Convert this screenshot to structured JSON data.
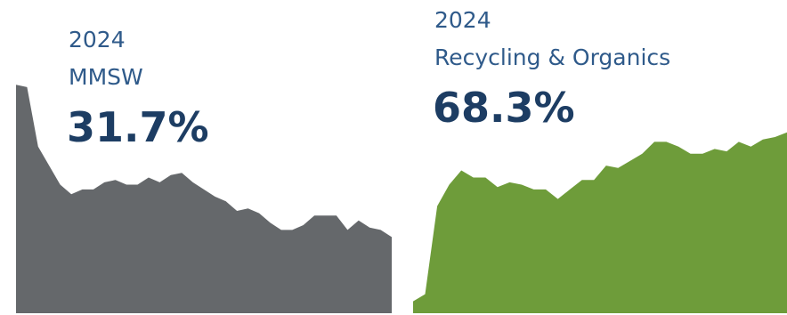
{
  "chart_data": [
    {
      "type": "area",
      "year_label": "2024",
      "series_label": "MMSW",
      "value_label": "31.7%",
      "color": "#65686b",
      "x_range": [
        0,
        35
      ],
      "y_range": [
        0,
        100
      ],
      "values": [
        96,
        95,
        70,
        62,
        54,
        50,
        52,
        52,
        55,
        56,
        54,
        54,
        57,
        55,
        58,
        59,
        55,
        52,
        49,
        47,
        43,
        44,
        42,
        38,
        35,
        35,
        37,
        41,
        41,
        41,
        35,
        39,
        36,
        35,
        32
      ]
    },
    {
      "type": "area",
      "year_label": "2024",
      "series_label": "Recycling & Organics",
      "value_label": "68.3%",
      "color": "#6e9c3a",
      "x_range": [
        0,
        35
      ],
      "y_range": [
        0,
        100
      ],
      "values": [
        5,
        8,
        45,
        54,
        60,
        57,
        57,
        53,
        55,
        54,
        52,
        52,
        48,
        52,
        56,
        56,
        62,
        61,
        64,
        67,
        72,
        72,
        70,
        67,
        67,
        69,
        68,
        72,
        70,
        73,
        74,
        76
      ]
    }
  ]
}
